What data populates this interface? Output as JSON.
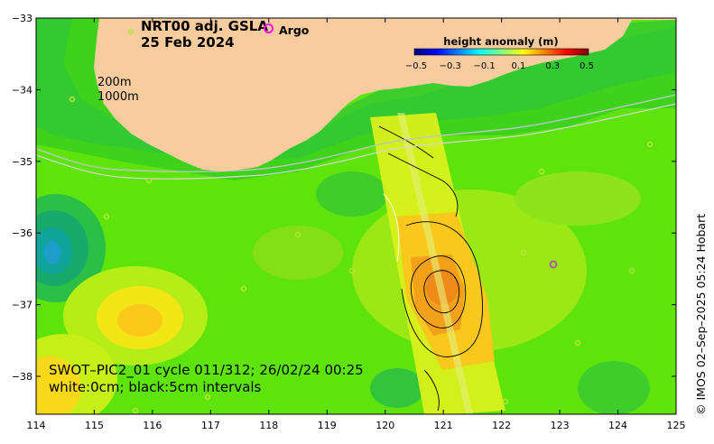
{
  "title": {
    "line1": "NRT00 adj. GSLA",
    "line2": "25 Feb 2024"
  },
  "legend": {
    "argo_label": "Argo",
    "argo_color": "#ff00ff"
  },
  "colorbar": {
    "title": "height anomaly (m)",
    "ticks": [
      "−0.5",
      "−0.3",
      "−0.1",
      "0.1",
      "0.3",
      "0.5"
    ],
    "colors": [
      "#00007f",
      "#0000ff",
      "#007fff",
      "#00ffff",
      "#7fff7f",
      "#ffff00",
      "#ff7f00",
      "#ff0000",
      "#7f0000"
    ]
  },
  "depth_labels": {
    "line1": "200m",
    "line2": "1000m"
  },
  "axes": {
    "lon_ticks": [
      "114",
      "115",
      "116",
      "117",
      "118",
      "119",
      "120",
      "121",
      "122",
      "123",
      "124",
      "125"
    ],
    "lat_ticks": [
      "−33",
      "−34",
      "−35",
      "−36",
      "−37",
      "−38"
    ]
  },
  "swot": {
    "line1": "SWOT–PIC2_01 cycle 011/312; 26/02/24 00:25",
    "line2": "white:0cm; black:5cm intervals"
  },
  "credit": "© IMOS 02–Sep–2025 05:24 Hobart",
  "colors": {
    "land": "#f9cc9f",
    "ocean_base": "#5ee40a"
  }
}
